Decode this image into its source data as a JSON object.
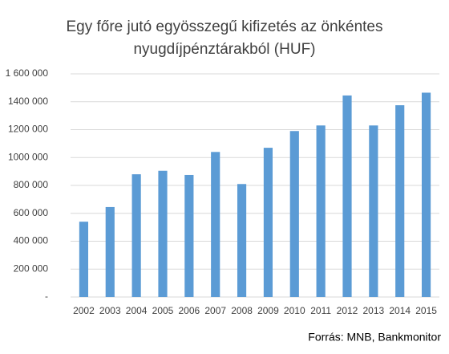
{
  "chart_data": {
    "type": "bar",
    "title": [
      "Egy főre jutó egyösszegű kifizetés az önkéntes",
      "nyugdíjpénztárakból (HUF)"
    ],
    "categories": [
      "2002",
      "2003",
      "2004",
      "2005",
      "2006",
      "2007",
      "2008",
      "2009",
      "2010",
      "2011",
      "2012",
      "2013",
      "2014",
      "2015"
    ],
    "values": [
      540000,
      645000,
      880000,
      905000,
      875000,
      1040000,
      810000,
      1070000,
      1190000,
      1230000,
      1445000,
      1230000,
      1375000,
      1465000
    ],
    "color": "#5b9bd5",
    "ylim": [
      0,
      1600000
    ],
    "yticks": [
      {
        "value": 0,
        "label": "-"
      },
      {
        "value": 200000,
        "label": "200 000"
      },
      {
        "value": 400000,
        "label": "400 000"
      },
      {
        "value": 600000,
        "label": "600 000"
      },
      {
        "value": 800000,
        "label": "800 000"
      },
      {
        "value": 1000000,
        "label": "1000 000"
      },
      {
        "value": 1200000,
        "label": "1200 000"
      },
      {
        "value": 1400000,
        "label": "1400 000"
      },
      {
        "value": 1600000,
        "label": "1 600 000"
      }
    ],
    "grid": true,
    "source": "Forrás: MNB, Bankmonitor"
  }
}
